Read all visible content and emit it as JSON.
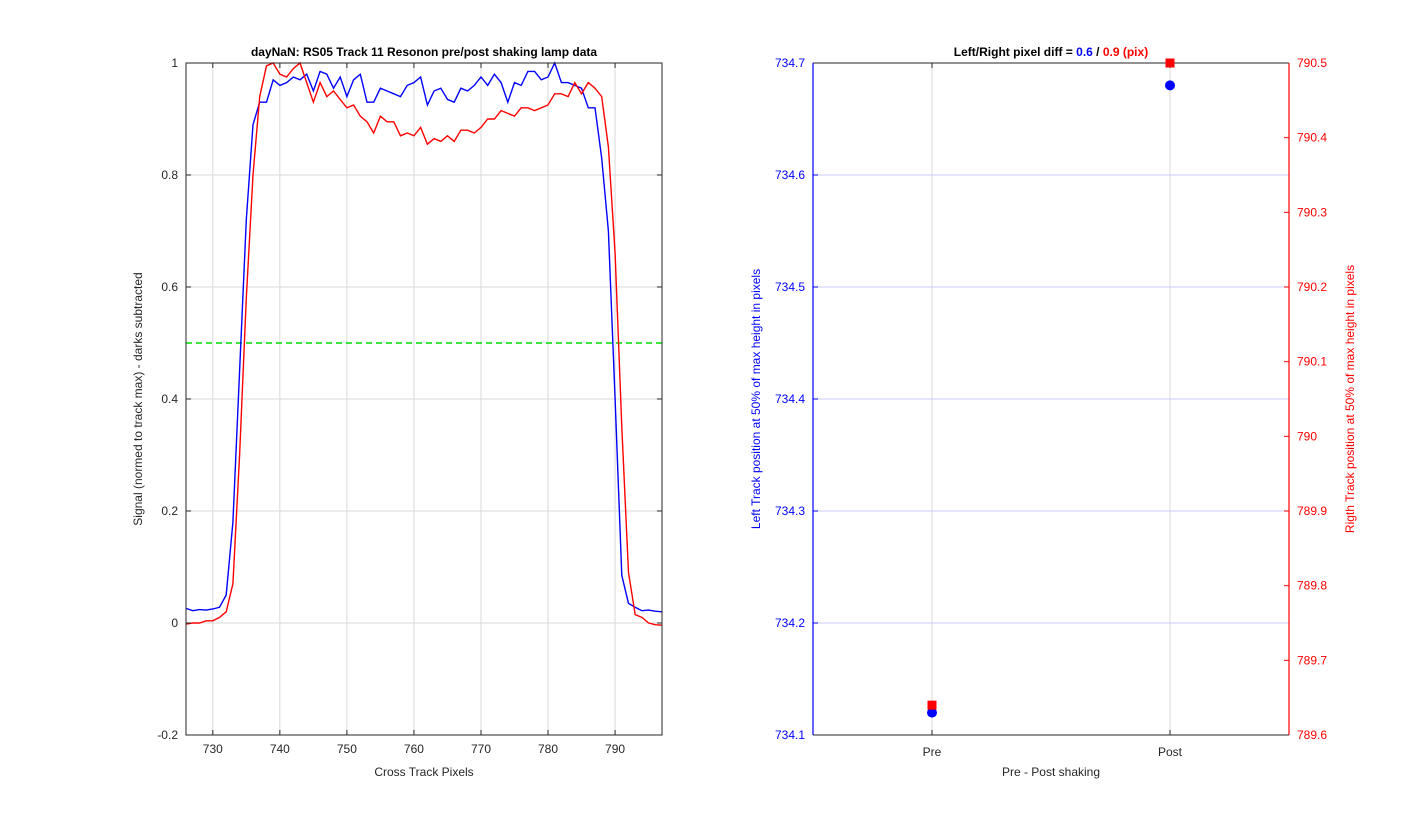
{
  "colors": {
    "blue": "#0000ff",
    "red": "#ff0000",
    "green": "#00dd00",
    "grid": "#d9d9d9",
    "bluegrid": "#c8c8ff",
    "axis": "#262626"
  },
  "chart_data": [
    {
      "type": "line",
      "title": "dayNaN: RS05  Track 11 Resonon pre/post shaking lamp data",
      "xlabel": "Cross Track Pixels",
      "ylabel": "Signal (normed to track max) - darks subtracted",
      "xlim": [
        726,
        797
      ],
      "ylim": [
        -0.2,
        1
      ],
      "xticks": [
        730,
        740,
        750,
        760,
        770,
        780,
        790
      ],
      "xtick_labels": [
        "730",
        "740",
        "750",
        "760",
        "770",
        "780",
        "790"
      ],
      "yticks": [
        -0.2,
        0,
        0.2,
        0.4,
        0.6,
        0.8,
        1
      ],
      "ytick_labels": [
        "-0.2",
        "0",
        "0.2",
        "0.4",
        "0.6",
        "0.8",
        "1"
      ],
      "grid": true,
      "threshold": 0.5,
      "x": [
        726,
        727,
        728,
        729,
        730,
        731,
        732,
        733,
        734,
        735,
        736,
        737,
        738,
        739,
        740,
        741,
        742,
        743,
        744,
        745,
        746,
        747,
        748,
        749,
        750,
        751,
        752,
        753,
        754,
        755,
        756,
        757,
        758,
        759,
        760,
        761,
        762,
        763,
        764,
        765,
        766,
        767,
        768,
        769,
        770,
        771,
        772,
        773,
        774,
        775,
        776,
        777,
        778,
        779,
        780,
        781,
        782,
        783,
        784,
        785,
        786,
        787,
        788,
        789,
        790,
        791,
        792,
        793,
        794,
        795,
        796,
        797
      ],
      "series": [
        {
          "color": "blue",
          "values": [
            0.026,
            0.022,
            0.024,
            0.023,
            0.025,
            0.028,
            0.05,
            0.18,
            0.45,
            0.72,
            0.89,
            0.93,
            0.93,
            0.97,
            0.96,
            0.965,
            0.975,
            0.97,
            0.98,
            0.95,
            0.985,
            0.98,
            0.955,
            0.975,
            0.94,
            0.97,
            0.98,
            0.93,
            0.93,
            0.955,
            0.95,
            0.945,
            0.94,
            0.96,
            0.965,
            0.975,
            0.925,
            0.95,
            0.955,
            0.935,
            0.93,
            0.955,
            0.95,
            0.96,
            0.975,
            0.96,
            0.98,
            0.965,
            0.93,
            0.965,
            0.96,
            0.985,
            0.985,
            0.97,
            0.975,
            1.0,
            0.965,
            0.965,
            0.96,
            0.955,
            0.92,
            0.92,
            0.83,
            0.7,
            0.4,
            0.085,
            0.035,
            0.028,
            0.022,
            0.023,
            0.021,
            0.02
          ]
        },
        {
          "color": "red",
          "values": [
            -0.002,
            0.0,
            0.0,
            0.004,
            0.004,
            0.01,
            0.02,
            0.07,
            0.3,
            0.58,
            0.8,
            0.94,
            0.995,
            1.0,
            0.98,
            0.975,
            0.99,
            1.0,
            0.965,
            0.93,
            0.965,
            0.94,
            0.95,
            0.935,
            0.92,
            0.925,
            0.905,
            0.895,
            0.875,
            0.905,
            0.895,
            0.895,
            0.87,
            0.875,
            0.87,
            0.885,
            0.855,
            0.865,
            0.86,
            0.87,
            0.86,
            0.88,
            0.88,
            0.875,
            0.885,
            0.9,
            0.9,
            0.915,
            0.91,
            0.905,
            0.92,
            0.92,
            0.915,
            0.92,
            0.925,
            0.945,
            0.945,
            0.94,
            0.965,
            0.945,
            0.965,
            0.955,
            0.94,
            0.85,
            0.66,
            0.35,
            0.09,
            0.015,
            0.01,
            0.0,
            -0.003,
            -0.004
          ]
        }
      ]
    },
    {
      "type": "scatter",
      "title_prefix": "Left/Right pixel diff = ",
      "title_left_value": "0.6",
      "title_separator": " / ",
      "title_right_value": "0.9 (pix)",
      "xlabel": "Pre - Post shaking",
      "ylabel_left": "Left Track position at 50% of max height in pixels",
      "ylabel_right": "Rigth Track position at 50% of max height in pixels",
      "categories": [
        "Pre",
        "Post"
      ],
      "xlim": [
        0.5,
        2.5
      ],
      "ylim_left": [
        734.1,
        734.7
      ],
      "ylim_right": [
        789.6,
        790.5
      ],
      "yticks_left": [
        734.1,
        734.2,
        734.3,
        734.4,
        734.5,
        734.6,
        734.7
      ],
      "ytick_labels_left": [
        "734.1",
        "734.2",
        "734.3",
        "734.4",
        "734.5",
        "734.6",
        "734.7"
      ],
      "yticks_right": [
        789.6,
        789.7,
        789.8,
        789.9,
        790.0,
        790.1,
        790.2,
        790.3,
        790.4,
        790.5
      ],
      "ytick_labels_right": [
        "789.6",
        "789.7",
        "789.8",
        "789.9",
        "790",
        "790.1",
        "790.2",
        "790.3",
        "790.4",
        "790.5"
      ],
      "left_series": {
        "color": "blue",
        "marker": "circle",
        "values": [
          734.12,
          734.68
        ]
      },
      "right_series": {
        "color": "red",
        "marker": "square",
        "values": [
          789.64,
          790.5
        ]
      }
    }
  ]
}
